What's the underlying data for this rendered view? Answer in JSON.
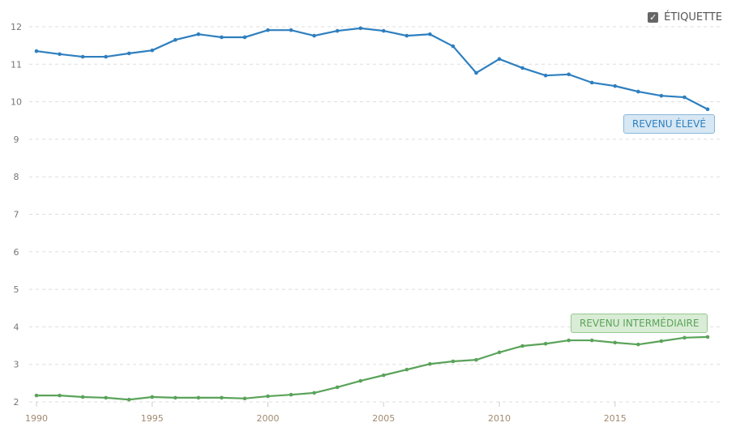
{
  "legend": {
    "checkbox_label": "ÉTIQUETTE",
    "checked": true
  },
  "chart_data": {
    "type": "line",
    "title": "",
    "xlabel": "",
    "ylabel": "",
    "ylim": [
      2,
      12
    ],
    "xlim": [
      1990,
      2019
    ],
    "yticks": [
      2,
      3,
      4,
      5,
      6,
      7,
      8,
      9,
      10,
      11,
      12
    ],
    "xticks": [
      1990,
      1995,
      2000,
      2005,
      2010,
      2015
    ],
    "grid": true,
    "x": [
      1990,
      1991,
      1992,
      1993,
      1994,
      1995,
      1996,
      1997,
      1998,
      1999,
      2000,
      2001,
      2002,
      2003,
      2004,
      2005,
      2006,
      2007,
      2008,
      2009,
      2010,
      2011,
      2012,
      2013,
      2014,
      2015,
      2016,
      2017,
      2018,
      2019
    ],
    "series": [
      {
        "name": "REVENU ÉLEVÉ",
        "color": "#2e7fbf",
        "label_bg": "#d7e7f3",
        "label_border": "#8ab8dc",
        "values": [
          11.35,
          11.27,
          11.2,
          11.2,
          11.29,
          11.37,
          11.65,
          11.8,
          11.72,
          11.72,
          11.91,
          11.91,
          11.76,
          11.89,
          11.96,
          11.89,
          11.76,
          11.8,
          11.48,
          10.77,
          11.14,
          10.9,
          10.7,
          10.73,
          10.51,
          10.42,
          10.27,
          10.16,
          10.12,
          9.8
        ]
      },
      {
        "name": "REVENU INTERMÉDIAIRE",
        "color": "#5aa35a",
        "label_bg": "#d9ecd5",
        "label_border": "#95c98d",
        "values": [
          2.17,
          2.17,
          2.13,
          2.11,
          2.06,
          2.13,
          2.11,
          2.11,
          2.11,
          2.09,
          2.15,
          2.19,
          2.24,
          2.39,
          2.56,
          2.71,
          2.86,
          3.01,
          3.08,
          3.12,
          3.32,
          3.49,
          3.55,
          3.64,
          3.64,
          3.58,
          3.53,
          3.62,
          3.71,
          3.73
        ]
      }
    ]
  }
}
